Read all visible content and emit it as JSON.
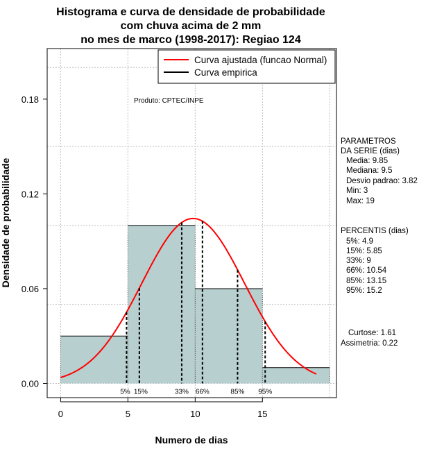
{
  "chart_data": {
    "type": "histogram",
    "title_lines": [
      "Histograma e curva de densidade de probabilidade",
      "com chuva acima de 2 mm",
      "no mes de marco (1998-2017): Regiao 124"
    ],
    "xlabel": "Numero de dias",
    "ylabel": "Densidade de probabilidade",
    "xlim": [
      -1,
      20.5
    ],
    "ylim": [
      -0.009,
      0.212
    ],
    "x_ticks": [
      0,
      5,
      10,
      15
    ],
    "y_ticks": [
      0.0,
      0.06,
      0.12,
      0.18
    ],
    "y_tick_labels": [
      "0.00",
      "0.06",
      "0.12",
      "0.18"
    ],
    "x_grid": [
      0,
      5,
      10,
      15,
      20
    ],
    "y_grid": [
      0.0,
      0.05,
      0.1,
      0.15,
      0.2
    ],
    "bins": [
      {
        "start": 0,
        "end": 5,
        "density": 0.03
      },
      {
        "start": 5,
        "end": 10,
        "density": 0.1
      },
      {
        "start": 10,
        "end": 15,
        "density": 0.06
      },
      {
        "start": 15,
        "end": 20,
        "density": 0.01
      }
    ],
    "fitted_curve": {
      "name": "Curva ajustada (funcao Normal)",
      "mean": 9.85,
      "sd": 3.82,
      "x_range": [
        0,
        19
      ],
      "color": "#ff0000"
    },
    "empirical_curve": {
      "name": "Curva empirica",
      "color": "#000000"
    },
    "percentile_lines": [
      {
        "label": "5%",
        "x": 4.9
      },
      {
        "label": "15%",
        "x": 5.85
      },
      {
        "label": "33%",
        "x": 9
      },
      {
        "label": "66%",
        "x": 10.54
      },
      {
        "label": "85%",
        "x": 13.15
      },
      {
        "label": "95%",
        "x": 15.2
      }
    ],
    "annotation": "Produto: CPTEC/INPE",
    "bar_color": "#b8cfcf"
  },
  "side_panel": {
    "params_title_1": "PARAMETROS",
    "params_title_2": "DA SERIE (dias)",
    "media": "Media: 9.85",
    "mediana": "Mediana: 9.5",
    "desvio": "Desvio padrao: 3.82",
    "min": "Min: 3",
    "max": "Max: 19",
    "percentis_title": "PERCENTIS (dias)",
    "p5": "5%: 4.9",
    "p15": "15%: 5.85",
    "p33": "33%: 9",
    "p66": "66%: 10.54",
    "p85": "85%: 13.15",
    "p95": "95%: 15.2",
    "curtose": "Curtose: 1.61",
    "assimetria": "Assimetria: 0.22"
  }
}
